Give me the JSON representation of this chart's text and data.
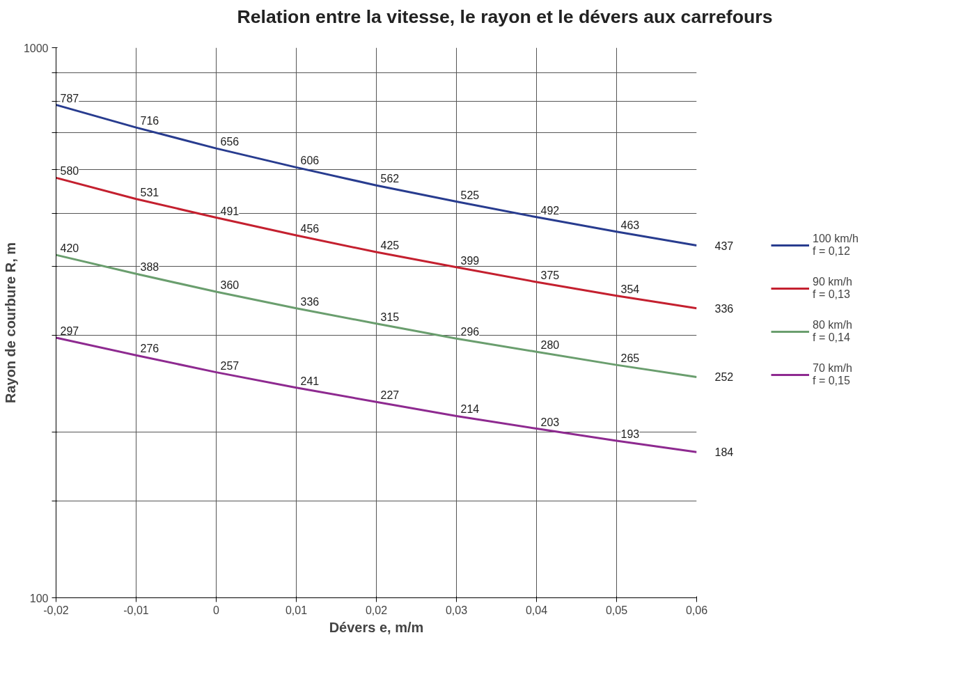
{
  "chart_data": {
    "type": "line",
    "title": "Relation entre la vitesse, le rayon et le dévers aux carrefours",
    "xlabel": "Dévers e, m/m",
    "ylabel": "Rayon de courbure R, m",
    "x": [
      -0.02,
      -0.01,
      0,
      0.01,
      0.02,
      0.03,
      0.04,
      0.05,
      0.06
    ],
    "series": [
      {
        "name": "100 km/h\nf = 0,12",
        "color": "#283c8f",
        "values": [
          787,
          716,
          656,
          606,
          562,
          525,
          492,
          463,
          437
        ]
      },
      {
        "name": "90 km/h\nf = 0,13",
        "color": "#c4202f",
        "values": [
          580,
          531,
          491,
          456,
          425,
          399,
          375,
          354,
          336
        ]
      },
      {
        "name": "80 km/h\nf = 0,14",
        "color": "#6a9e6e",
        "values": [
          420,
          388,
          360,
          336,
          315,
          296,
          280,
          265,
          252
        ]
      },
      {
        "name": "70 km/h\nf = 0,15",
        "color": "#8e2a90",
        "values": [
          297,
          276,
          257,
          241,
          227,
          214,
          203,
          193,
          184
        ]
      }
    ],
    "xlim": [
      -0.02,
      0.06
    ],
    "xticks": [
      {
        "value": -0.02,
        "label": "-0,02"
      },
      {
        "value": -0.01,
        "label": "-0,01"
      },
      0,
      {
        "value": 0.01,
        "label": "0,01"
      },
      {
        "value": 0.02,
        "label": "0,02"
      },
      {
        "value": 0.03,
        "label": "0,03"
      },
      {
        "value": 0.04,
        "label": "0,04"
      },
      {
        "value": 0.05,
        "label": "0,05"
      },
      {
        "value": 0.06,
        "label": "0,06"
      }
    ],
    "ylim": [
      100,
      1000
    ],
    "yticks": [
      100,
      {
        "value": 150,
        "label": null
      },
      {
        "value": 200,
        "label": null
      },
      {
        "value": 300,
        "label": null
      },
      {
        "value": 400,
        "label": null
      },
      {
        "value": 500,
        "label": null
      },
      {
        "value": 600,
        "label": null
      },
      {
        "value": 700,
        "label": null
      },
      {
        "value": 800,
        "label": null
      },
      {
        "value": 900,
        "label": null
      },
      1000
    ],
    "log": "y",
    "grid": true,
    "legend": "right",
    "data_labels": true,
    "marker": "none",
    "line_style": "solid"
  }
}
